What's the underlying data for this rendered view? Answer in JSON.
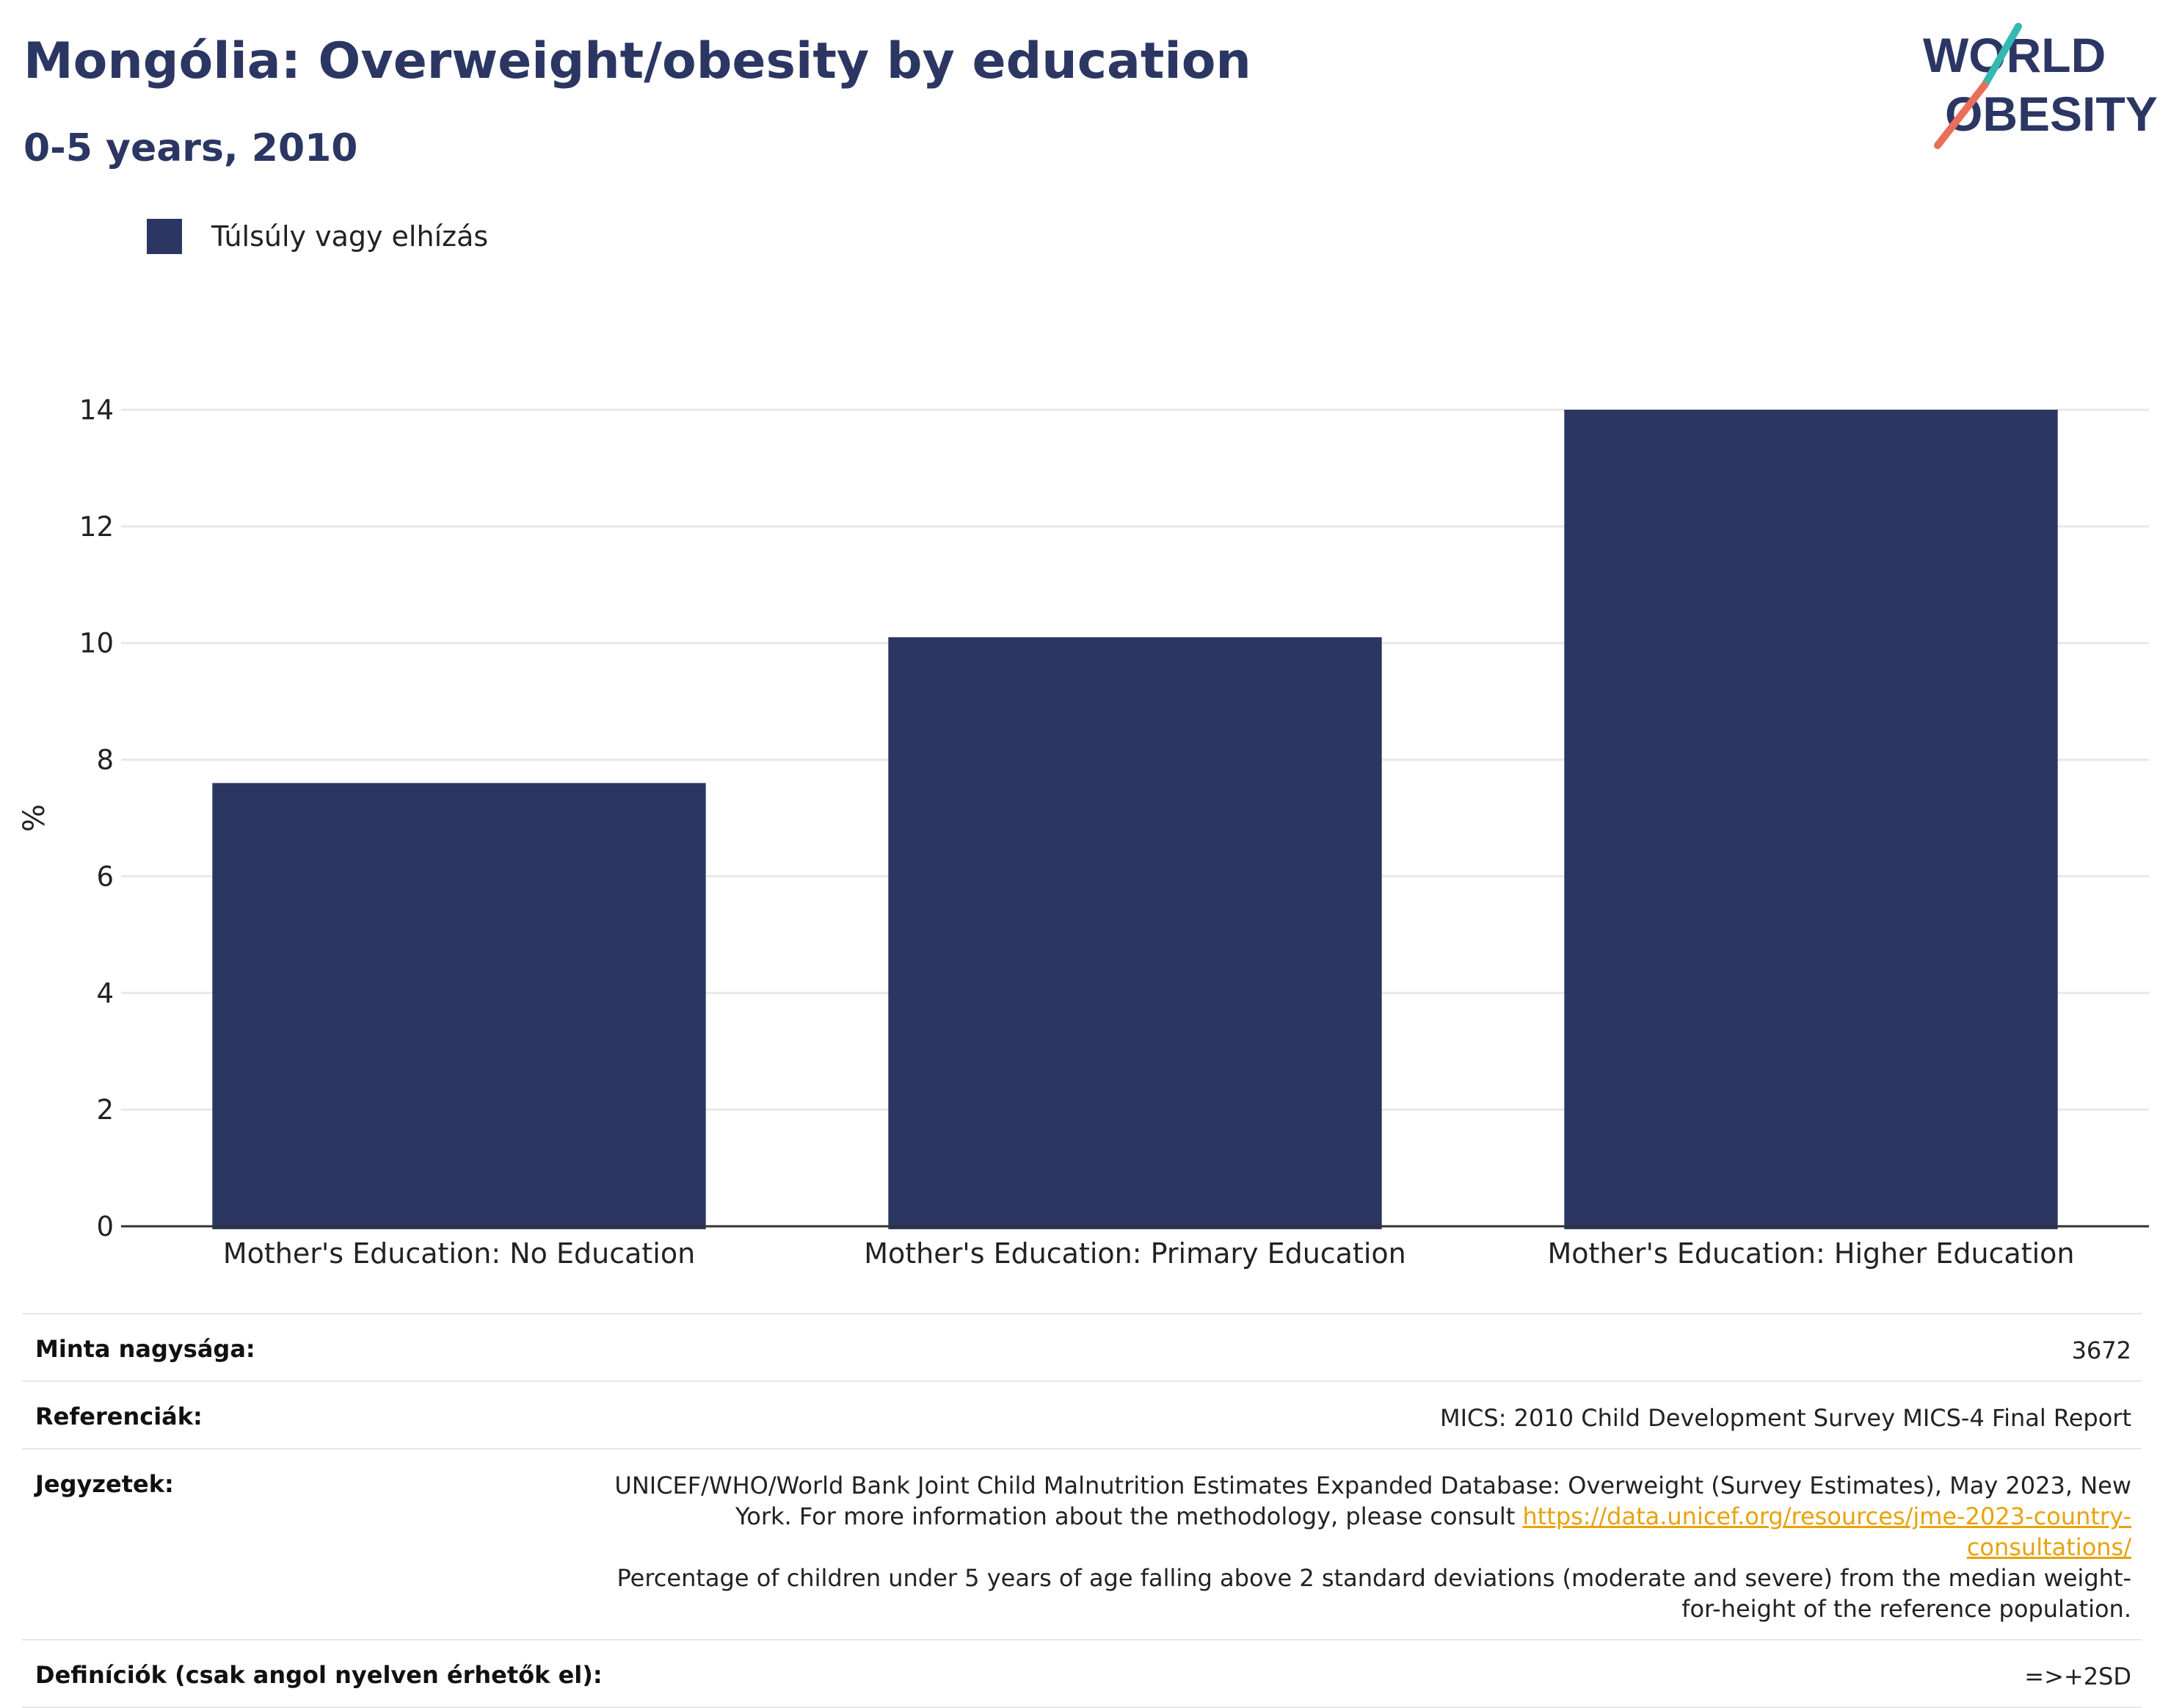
{
  "header": {
    "title": "Mongólia: Overweight/obesity by education",
    "subtitle": "0-5 years, 2010"
  },
  "logo": {
    "line1": "WORLD",
    "line2": "OBESITY"
  },
  "colors": {
    "bar": "#2b3663",
    "title": "#2b3663",
    "link": "#e8a20c",
    "logo_teal": "#35b8b0",
    "logo_coral": "#e8705a"
  },
  "legend": {
    "label": "Túlsúly vagy elhízás"
  },
  "chart_data": {
    "type": "bar",
    "title": "Mongólia: Overweight/obesity by education",
    "subtitle": "0-5 years, 2010",
    "categories": [
      "Mother's Education: No Education",
      "Mother's Education: Primary Education",
      "Mother's Education: Higher Education"
    ],
    "series": [
      {
        "name": "Túlsúly vagy elhízás",
        "values": [
          7.6,
          10.1,
          14.0
        ]
      }
    ],
    "xlabel": "",
    "ylabel": "%",
    "ylim": [
      0,
      14
    ],
    "yticks": [
      0,
      2,
      4,
      6,
      8,
      10,
      12,
      14
    ],
    "grid": true,
    "legend": "top-left"
  },
  "info": {
    "sample_label": "Minta nagysága:",
    "sample_value": "3672",
    "refs_label": "Referenciák:",
    "refs_value": "MICS: 2010 Child Development Survey MICS-4 Final Report",
    "notes_label": "Jegyzetek:",
    "notes_text1": "UNICEF/WHO/World Bank Joint Child Malnutrition Estimates Expanded Database: Overweight (Survey Estimates), May 2023, New York. For more information about the methodology, please consult ",
    "notes_link": "https://data.unicef.org/resources/jme-2023-country-consultations/",
    "notes_text2": "Percentage of children under 5 years of age falling above 2 standard deviations (moderate and severe) from the median weight-for-height of the reference population.",
    "defs_label": "Definíciók (csak angol nyelven érhetők el):",
    "defs_value": "=>+2SD"
  }
}
